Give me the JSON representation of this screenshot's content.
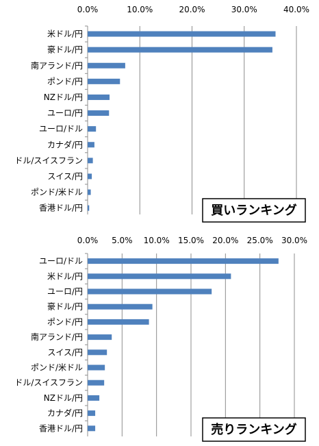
{
  "chart_data": [
    {
      "type": "bar",
      "orientation": "horizontal",
      "title": "",
      "box_label": "買いランキング",
      "xlim": [
        0,
        40
      ],
      "xticks": [
        "0.0%",
        "10.0%",
        "20.0%",
        "30.0%",
        "40.0%"
      ],
      "grid": true,
      "legend": "none",
      "color": "#4F81BD",
      "categories": [
        "米ドル/円",
        "豪ドル/円",
        "南アランド/円",
        "ポンド/円",
        "NZドル/円",
        "ユーロ/円",
        "ユーロ/ドル",
        "カナダ/円",
        "ドル/スイスフラン",
        "スイス/円",
        "ポンド/米ドル",
        "香港ドル/円"
      ],
      "values": [
        36.0,
        35.4,
        7.2,
        6.2,
        4.2,
        4.1,
        1.6,
        1.3,
        1.0,
        0.8,
        0.6,
        0.3
      ]
    },
    {
      "type": "bar",
      "orientation": "horizontal",
      "title": "",
      "box_label": "売りランキング",
      "xlim": [
        0,
        30
      ],
      "xticks": [
        "0.0%",
        "5.0%",
        "10.0%",
        "15.0%",
        "20.0%",
        "25.0%",
        "30.0%"
      ],
      "grid": true,
      "legend": "none",
      "color": "#4F81BD",
      "categories": [
        "ユーロ/ドル",
        "米ドル/円",
        "ユーロ/円",
        "豪ドル/円",
        "ポンド/円",
        "南アランド/円",
        "スイス/円",
        "ポンド/米ドル",
        "ドル/スイスフラン",
        "NZドル/円",
        "カナダ/円",
        "香港ドル/円"
      ],
      "values": [
        27.7,
        20.8,
        18.0,
        9.4,
        8.9,
        3.5,
        2.8,
        2.5,
        2.4,
        1.7,
        1.1,
        1.1
      ]
    }
  ]
}
